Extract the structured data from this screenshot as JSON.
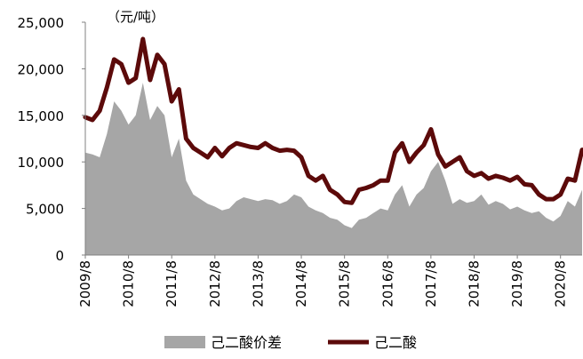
{
  "chart_data": {
    "type": "area",
    "unit_label": "（元/吨）",
    "title": "",
    "xlabel": "",
    "ylabel": "",
    "ylim": [
      0,
      25000
    ],
    "y_ticks": [
      "0",
      "5,000",
      "10,000",
      "15,000",
      "20,000",
      "25,000"
    ],
    "x_ticks": [
      "2009/8",
      "2010/8",
      "2011/8",
      "2012/8",
      "2013/8",
      "2014/8",
      "2015/8",
      "2016/8",
      "2017/8",
      "2018/8",
      "2019/8",
      "2020/8"
    ],
    "grid": false,
    "legend_position": "bottom",
    "x": [
      "2009/8",
      "2009/10",
      "2009/12",
      "2010/2",
      "2010/4",
      "2010/6",
      "2010/8",
      "2010/10",
      "2010/12",
      "2011/2",
      "2011/4",
      "2011/6",
      "2011/8",
      "2011/10",
      "2011/12",
      "2012/2",
      "2012/4",
      "2012/6",
      "2012/8",
      "2012/10",
      "2012/12",
      "2013/2",
      "2013/4",
      "2013/6",
      "2013/8",
      "2013/10",
      "2013/12",
      "2014/2",
      "2014/4",
      "2014/6",
      "2014/8",
      "2014/10",
      "2014/12",
      "2015/2",
      "2015/4",
      "2015/6",
      "2015/8",
      "2015/10",
      "2015/12",
      "2016/2",
      "2016/4",
      "2016/6",
      "2016/8",
      "2016/10",
      "2016/12",
      "2017/2",
      "2017/4",
      "2017/6",
      "2017/8",
      "2017/10",
      "2017/12",
      "2018/2",
      "2018/4",
      "2018/6",
      "2018/8",
      "2018/10",
      "2018/12",
      "2019/2",
      "2019/4",
      "2019/6",
      "2019/8",
      "2019/10",
      "2019/12",
      "2020/2",
      "2020/4",
      "2020/6",
      "2020/8",
      "2020/10",
      "2020/12",
      "2021/2"
    ],
    "series": [
      {
        "name": "己二酸价差",
        "style": "area",
        "color": "#a6a6a6",
        "values": [
          11000,
          10800,
          10500,
          13000,
          16500,
          15500,
          14000,
          15000,
          18500,
          14500,
          16000,
          15000,
          10500,
          12500,
          8000,
          6500,
          6000,
          5500,
          5200,
          4800,
          5000,
          5800,
          6200,
          6000,
          5800,
          6000,
          5900,
          5500,
          5800,
          6500,
          6200,
          5200,
          4800,
          4500,
          4000,
          3800,
          3200,
          2900,
          3800,
          4000,
          4500,
          5000,
          4800,
          6500,
          7500,
          5200,
          6500,
          7200,
          9000,
          10000,
          8000,
          5500,
          6000,
          5600,
          5800,
          6500,
          5400,
          5800,
          5500,
          4900,
          5200,
          4800,
          4500,
          4700,
          4000,
          3600,
          4200,
          5800,
          5200,
          7000
        ]
      },
      {
        "name": "己二酸",
        "style": "line",
        "color": "#5c0a0a",
        "values": [
          14800,
          14500,
          15500,
          18000,
          21000,
          20500,
          18500,
          19000,
          23200,
          18800,
          21500,
          20500,
          16500,
          17800,
          12500,
          11500,
          11000,
          10500,
          11500,
          10600,
          11500,
          12000,
          11800,
          11600,
          11500,
          12000,
          11500,
          11200,
          11300,
          11200,
          10500,
          8500,
          8000,
          8500,
          7000,
          6500,
          5700,
          5600,
          7000,
          7200,
          7500,
          8000,
          8000,
          11000,
          12000,
          10000,
          11000,
          11800,
          13500,
          10800,
          9500,
          10000,
          10500,
          9000,
          8500,
          8800,
          8200,
          8500,
          8300,
          8000,
          8400,
          7600,
          7500,
          6500,
          6000,
          6000,
          6500,
          8200,
          8000,
          11300
        ]
      }
    ]
  }
}
